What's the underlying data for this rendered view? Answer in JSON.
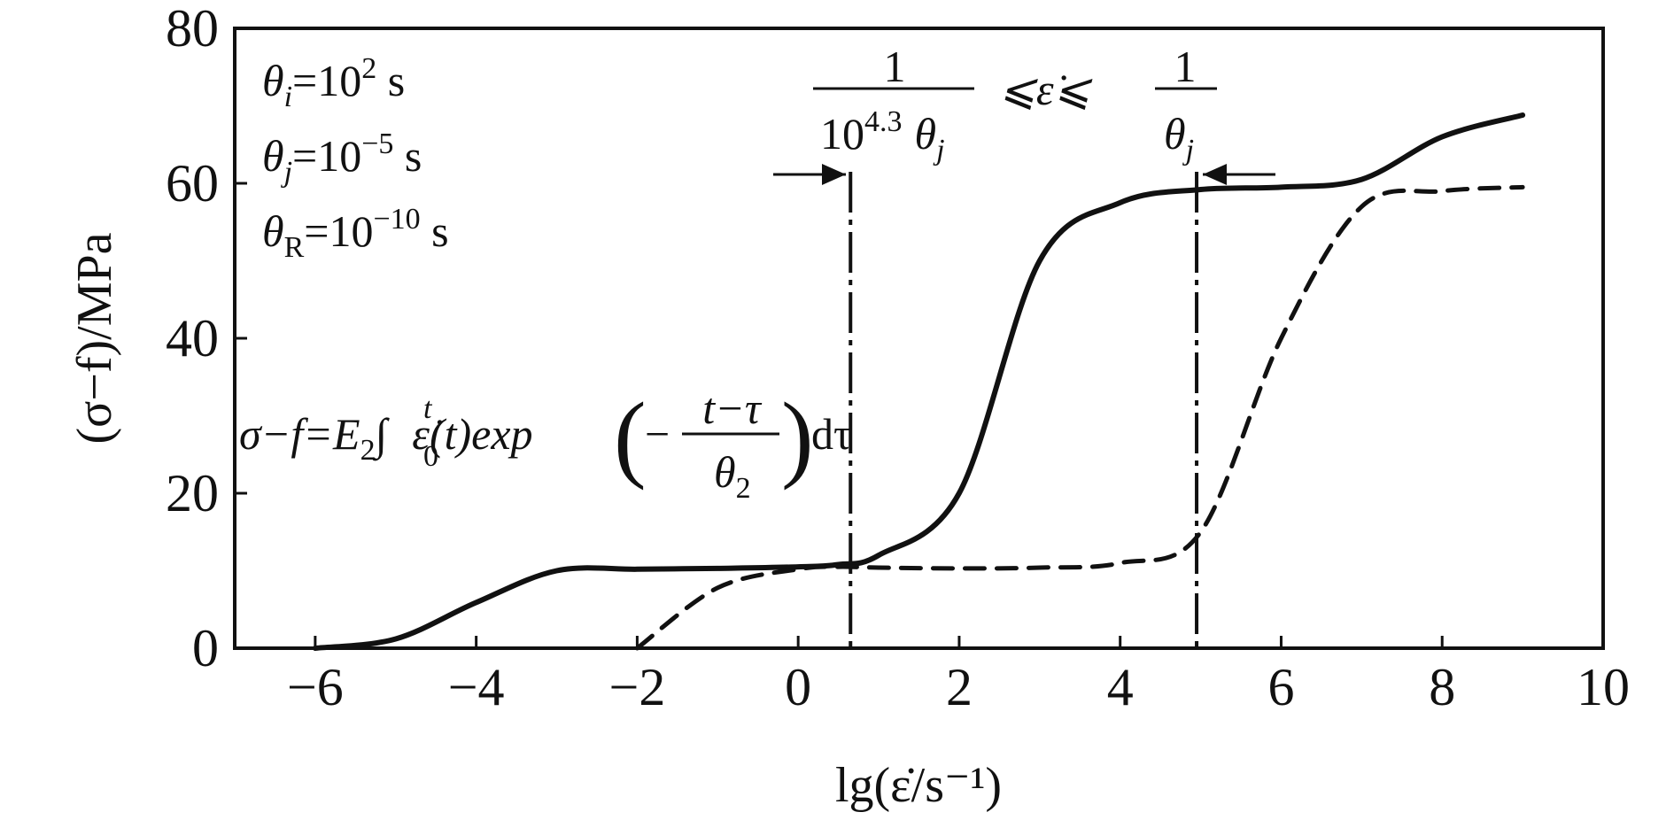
{
  "chart_data": {
    "type": "line",
    "x": [
      -6,
      -5,
      -4,
      -3,
      -2,
      -1,
      0,
      0.5,
      1,
      2,
      3,
      4,
      5,
      6,
      7,
      8,
      9
    ],
    "series": [
      {
        "name": "",
        "style": "solid",
        "values": [
          0,
          1.2,
          5.9,
          10,
          10.2,
          10.3,
          10.5,
          10.8,
          12,
          20,
          50,
          57.5,
          59.2,
          59.5,
          60.5,
          66,
          68.8
        ]
      },
      {
        "name": "",
        "style": "dashed",
        "values": [
          null,
          null,
          null,
          null,
          0,
          7.8,
          10.2,
          10.5,
          10.4,
          10.3,
          10.4,
          11,
          15,
          40,
          57,
          59,
          59.5
        ]
      }
    ],
    "xlim": [
      -7,
      10
    ],
    "ylim": [
      0,
      80
    ],
    "xticks": [
      "−6",
      "−4",
      "−2",
      "0",
      "2",
      "4",
      "6",
      "8",
      "10"
    ],
    "yticks": [
      "0",
      "20",
      "40",
      "60",
      "80"
    ],
    "xlabel": "lg(ε̇/s⁻¹)",
    "ylabel": "(σ−f)/MPa",
    "vlines": [
      0.65,
      4.95
    ],
    "grid": false
  },
  "annotations": {
    "theta_i": {
      "sym": "θ",
      "sub": "i",
      "eq": "=10",
      "exp": "2",
      "unit": " s"
    },
    "theta_j": {
      "sym": "θ",
      "sub": "j",
      "eq": "=10",
      "exp": "−5",
      "unit": " s"
    },
    "theta_r": {
      "sym": "θ",
      "sub": "R",
      "eq": "=10",
      "exp": "−10",
      "unit": " s"
    },
    "range": {
      "num_left": "1",
      "den_left_base": "10",
      "den_left_exp": "4.3",
      "den_left_theta": "θ",
      "den_left_sub": "j",
      "middle": "⩽ε̇⩽",
      "num_right": "1",
      "den_right_theta": "θ",
      "den_right_sub": "j"
    },
    "formula": {
      "lhs": "σ−f=E",
      "lhs_sub": "2",
      "integral": "∫",
      "int_upper": "t",
      "int_lower": "0",
      "integrand": "ε̇(t)exp",
      "lparen": "(",
      "minus": "−",
      "frac_num": "t−τ",
      "frac_den": "θ",
      "frac_den_sub": "2",
      "rparen": ")",
      "tail": "dτ"
    }
  }
}
